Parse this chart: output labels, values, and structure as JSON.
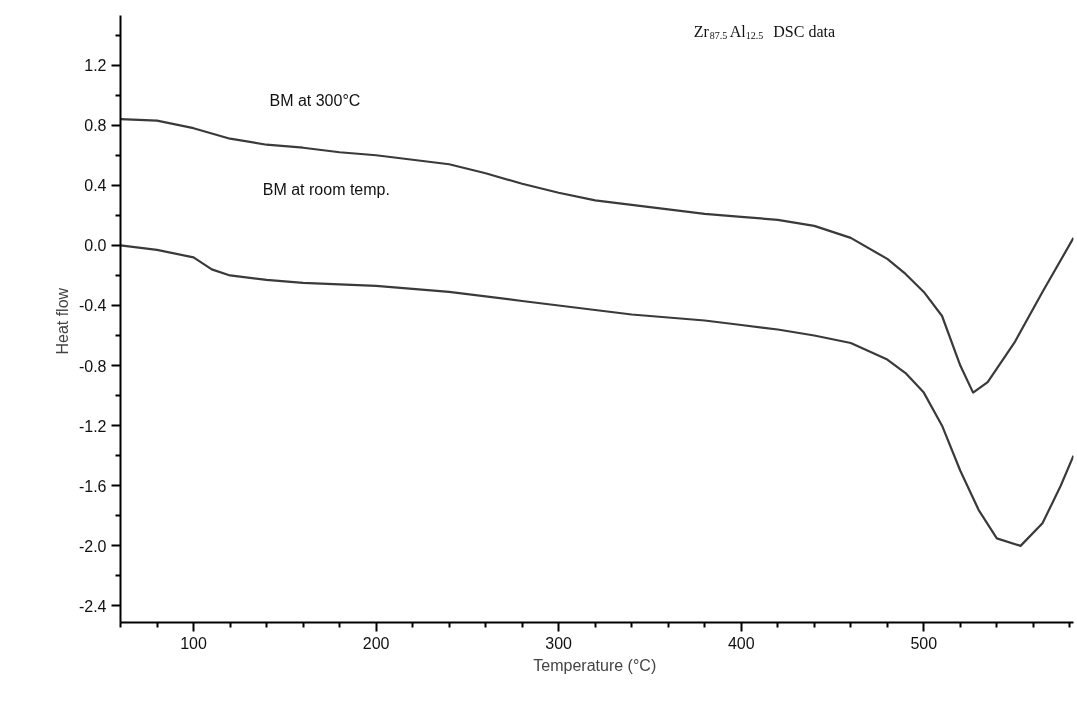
{
  "chart_data": {
    "type": "line",
    "title": "Zr$_{87.5}$Al$_{12.5}$ DSC data",
    "xlabel": "Temperature  (°C)",
    "ylabel": "Heat  flow",
    "xlim": [
      60,
      582
    ],
    "ylim": [
      -2.51,
      1.53
    ],
    "xticks": [
      {
        "value": 60,
        "label": null
      },
      {
        "value": 80,
        "label": null
      },
      100,
      {
        "value": 120,
        "label": null
      },
      {
        "value": 140,
        "label": null
      },
      {
        "value": 160,
        "label": null
      },
      {
        "value": 180,
        "label": null
      },
      200,
      {
        "value": 220,
        "label": null
      },
      {
        "value": 240,
        "label": null
      },
      {
        "value": 260,
        "label": null
      },
      {
        "value": 280,
        "label": null
      },
      300,
      {
        "value": 320,
        "label": null
      },
      {
        "value": 340,
        "label": null
      },
      {
        "value": 360,
        "label": null
      },
      {
        "value": 380,
        "label": null
      },
      400,
      {
        "value": 420,
        "label": null
      },
      {
        "value": 440,
        "label": null
      },
      {
        "value": 460,
        "label": null
      },
      {
        "value": 480,
        "label": null
      },
      500,
      {
        "value": 520,
        "label": null
      },
      {
        "value": 540,
        "label": null
      },
      {
        "value": 560,
        "label": null
      },
      {
        "value": 580,
        "label": null
      }
    ],
    "yticks": [
      {
        "value": -2.4,
        "label": "-2.4"
      },
      {
        "value": -2.2,
        "label": null
      },
      {
        "value": -2.0,
        "label": "-2.0"
      },
      {
        "value": -1.8,
        "label": null
      },
      {
        "value": -1.6,
        "label": "-1.6"
      },
      {
        "value": -1.4,
        "label": null
      },
      {
        "value": -1.2,
        "label": "-1.2"
      },
      {
        "value": -1.0,
        "label": null
      },
      {
        "value": -0.8,
        "label": "-0.8"
      },
      {
        "value": -0.6,
        "label": null
      },
      {
        "value": -0.4,
        "label": "-0.4"
      },
      {
        "value": -0.2,
        "label": null
      },
      {
        "value": 0,
        "label": "0.0"
      },
      {
        "value": 0.2,
        "label": null
      },
      {
        "value": 0.4,
        "label": "0.4"
      },
      {
        "value": 0.6,
        "label": null
      },
      {
        "value": 0.8,
        "label": "0.8"
      },
      {
        "value": 1.0,
        "label": null
      },
      {
        "value": 1.2,
        "label": "1.2"
      },
      {
        "value": 1.4,
        "label": null
      }
    ],
    "grid": false,
    "marker": "none",
    "line_style": "solid",
    "series": [
      {
        "color": "#3a3a3a",
        "x": [
          60,
          80,
          100,
          120,
          140,
          160,
          180,
          200,
          220,
          240,
          260,
          280,
          300,
          320,
          340,
          360,
          380,
          400,
          420,
          440,
          460,
          480,
          490,
          500,
          510,
          520,
          527,
          535,
          550,
          565,
          582
        ],
        "values": [
          0.84,
          0.83,
          0.78,
          0.71,
          0.67,
          0.65,
          0.62,
          0.6,
          0.57,
          0.54,
          0.48,
          0.41,
          0.35,
          0.3,
          0.27,
          0.24,
          0.21,
          0.19,
          0.17,
          0.13,
          0.05,
          -0.09,
          -0.19,
          -0.31,
          -0.47,
          -0.8,
          -0.98,
          -0.91,
          -0.64,
          -0.31,
          0.05
        ]
      },
      {
        "color": "#3a3a3a",
        "x": [
          60,
          80,
          100,
          110,
          120,
          140,
          160,
          180,
          200,
          240,
          280,
          300,
          340,
          380,
          400,
          420,
          440,
          460,
          480,
          490,
          500,
          510,
          520,
          530,
          540,
          553,
          565,
          575,
          582
        ],
        "values": [
          0.0,
          -0.03,
          -0.08,
          -0.16,
          -0.2,
          -0.23,
          -0.25,
          -0.26,
          -0.27,
          -0.31,
          -0.37,
          -0.4,
          -0.46,
          -0.5,
          -0.53,
          -0.56,
          -0.6,
          -0.65,
          -0.76,
          -0.85,
          -0.98,
          -1.2,
          -1.5,
          -1.76,
          -1.95,
          -2.0,
          -1.85,
          -1.6,
          -1.4
        ]
      }
    ],
    "annotations": [
      "BM at 300°C",
      "BM at room temp."
    ]
  }
}
